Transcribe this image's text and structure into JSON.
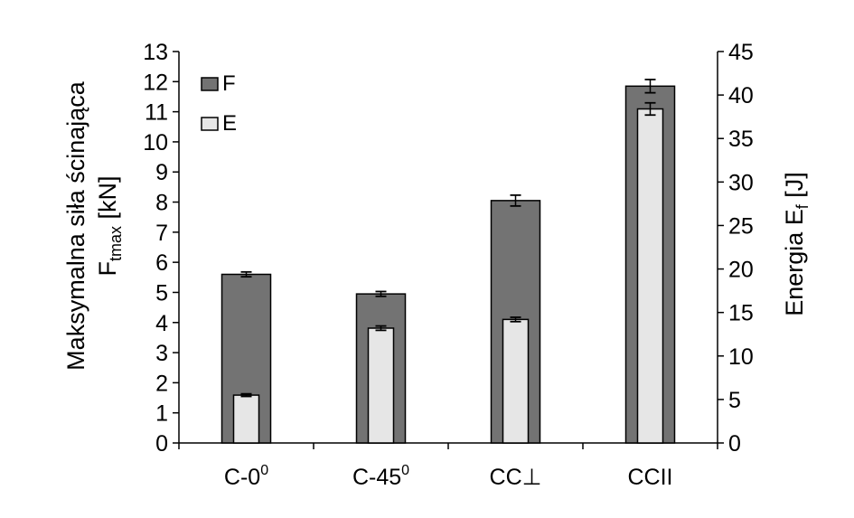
{
  "chart_data": {
    "type": "bar",
    "categories": [
      {
        "base": "C-0",
        "sup": "0"
      },
      {
        "base": "C-45",
        "sup": "0"
      },
      {
        "base": "CC⊥",
        "sup": ""
      },
      {
        "base": "CCII",
        "sup": ""
      }
    ],
    "series": [
      {
        "name": "F",
        "axis": "left",
        "values": [
          5.6,
          4.95,
          8.05,
          11.85
        ],
        "errors": [
          0.08,
          0.08,
          0.18,
          0.22
        ],
        "color": "#737373"
      },
      {
        "name": "E",
        "axis": "right",
        "values": [
          5.5,
          13.2,
          14.2,
          38.4
        ],
        "errors": [
          0.15,
          0.25,
          0.25,
          0.7
        ],
        "color": "#e6e6e6"
      }
    ],
    "y_left": {
      "label_line1": "Maksymalna siła ścinająca",
      "label_line2_prefix": "F",
      "label_line2_sub": "tmax",
      "label_line2_suffix": " [kN]",
      "range": [
        0,
        13
      ],
      "ticks": [
        "0",
        "1",
        "2",
        "3",
        "4",
        "5",
        "6",
        "7",
        "8",
        "9",
        "10",
        "11",
        "12",
        "13"
      ]
    },
    "y_right": {
      "label_prefix": "Energia E",
      "label_sub": "f",
      "label_suffix": "  [J]",
      "range": [
        0,
        45
      ],
      "ticks": [
        "0",
        "5",
        "10",
        "15",
        "20",
        "25",
        "30",
        "35",
        "40",
        "45"
      ]
    },
    "legend": {
      "position": "top-left"
    },
    "grid": false
  }
}
